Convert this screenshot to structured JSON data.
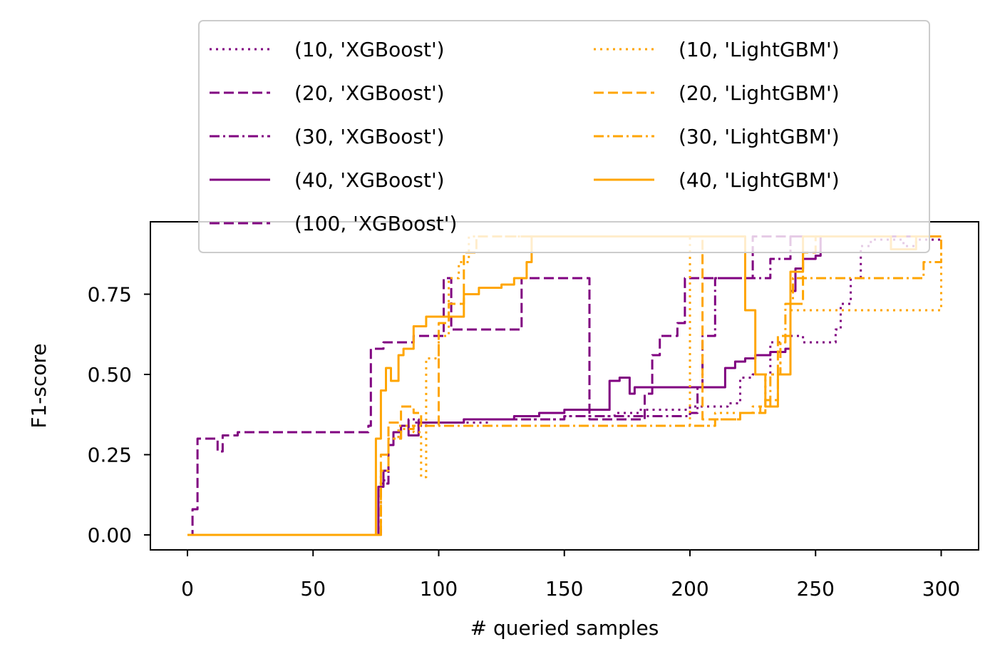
{
  "chart_data": {
    "type": "line",
    "title": "",
    "xlabel": "# queried samples",
    "ylabel": "F1-score",
    "xlim": [
      -15,
      315
    ],
    "ylim": [
      -0.05,
      0.97
    ],
    "xticks": [
      0,
      50,
      100,
      150,
      200,
      250,
      300
    ],
    "yticks": [
      0.0,
      0.25,
      0.5,
      0.75
    ],
    "xtick_labels": [
      "0",
      "50",
      "100",
      "150",
      "200",
      "250",
      "300"
    ],
    "ytick_labels": [
      "0.00",
      "0.25",
      "0.50",
      "0.75"
    ],
    "grid": false,
    "legend_position": "upper center, above plot, 2 columns",
    "series": [
      {
        "name": "(10, 'XGBoost')",
        "color": "#800080",
        "dash": "dotted",
        "points": [
          [
            0,
            0
          ],
          [
            75,
            0
          ],
          [
            77,
            0.17
          ],
          [
            80,
            0.3
          ],
          [
            84,
            0.34
          ],
          [
            90,
            0.35
          ],
          [
            100,
            0.35
          ],
          [
            120,
            0.36
          ],
          [
            150,
            0.37
          ],
          [
            170,
            0.38
          ],
          [
            175,
            0.38
          ],
          [
            180,
            0.39
          ],
          [
            200,
            0.4
          ],
          [
            215,
            0.41
          ],
          [
            220,
            0.49
          ],
          [
            225,
            0.5
          ],
          [
            232,
            0.6
          ],
          [
            240,
            0.62
          ],
          [
            245,
            0.6
          ],
          [
            255,
            0.6
          ],
          [
            258,
            0.64
          ],
          [
            260,
            0.72
          ],
          [
            264,
            0.8
          ],
          [
            268,
            0.9
          ],
          [
            272,
            0.92
          ],
          [
            280,
            0.92
          ],
          [
            285,
            0.9
          ],
          [
            290,
            0.92
          ],
          [
            300,
            0.92
          ]
        ]
      },
      {
        "name": "(20, 'XGBoost')",
        "color": "#800080",
        "dash": "dashed",
        "points": [
          [
            0,
            0
          ],
          [
            2,
            0.08
          ],
          [
            4,
            0.3
          ],
          [
            10,
            0.3
          ],
          [
            12,
            0.26
          ],
          [
            14,
            0.31
          ],
          [
            20,
            0.32
          ],
          [
            50,
            0.32
          ],
          [
            70,
            0.32
          ],
          [
            72,
            0.34
          ],
          [
            73,
            0.58
          ],
          [
            78,
            0.6
          ],
          [
            90,
            0.62
          ],
          [
            100,
            0.62
          ],
          [
            102,
            0.8
          ],
          [
            105,
            0.64
          ],
          [
            130,
            0.64
          ],
          [
            133,
            0.8
          ],
          [
            160,
            0.36
          ],
          [
            175,
            0.36
          ],
          [
            180,
            0.36
          ],
          [
            182,
            0.44
          ],
          [
            185,
            0.56
          ],
          [
            188,
            0.62
          ],
          [
            195,
            0.66
          ],
          [
            198,
            0.8
          ],
          [
            220,
            0.8
          ],
          [
            225,
            0.93
          ],
          [
            300,
            0.93
          ]
        ]
      },
      {
        "name": "(30, 'XGBoost')",
        "color": "#800080",
        "dash": "dashdot",
        "points": [
          [
            0,
            0
          ],
          [
            75,
            0
          ],
          [
            77,
            0.16
          ],
          [
            80,
            0.3
          ],
          [
            85,
            0.33
          ],
          [
            88,
            0.36
          ],
          [
            92,
            0.34
          ],
          [
            95,
            0.35
          ],
          [
            110,
            0.36
          ],
          [
            150,
            0.37
          ],
          [
            170,
            0.37
          ],
          [
            175,
            0.37
          ],
          [
            200,
            0.38
          ],
          [
            203,
            0.46
          ],
          [
            205,
            0.62
          ],
          [
            210,
            0.8
          ],
          [
            230,
            0.8
          ],
          [
            232,
            0.86
          ],
          [
            240,
            0.93
          ],
          [
            300,
            0.93
          ]
        ]
      },
      {
        "name": "(40, 'XGBoost')",
        "color": "#800080",
        "dash": "solid",
        "points": [
          [
            0,
            0
          ],
          [
            75,
            0
          ],
          [
            76,
            0.15
          ],
          [
            78,
            0.2
          ],
          [
            80,
            0.28
          ],
          [
            82,
            0.32
          ],
          [
            85,
            0.34
          ],
          [
            88,
            0.31
          ],
          [
            92,
            0.35
          ],
          [
            110,
            0.36
          ],
          [
            130,
            0.37
          ],
          [
            140,
            0.38
          ],
          [
            150,
            0.39
          ],
          [
            165,
            0.39
          ],
          [
            168,
            0.48
          ],
          [
            172,
            0.49
          ],
          [
            176,
            0.44
          ],
          [
            178,
            0.46
          ],
          [
            200,
            0.46
          ],
          [
            212,
            0.46
          ],
          [
            214,
            0.52
          ],
          [
            218,
            0.54
          ],
          [
            222,
            0.55
          ],
          [
            226,
            0.56
          ],
          [
            232,
            0.57
          ],
          [
            238,
            0.58
          ],
          [
            240,
            0.76
          ],
          [
            242,
            0.83
          ],
          [
            245,
            0.86
          ],
          [
            250,
            0.87
          ],
          [
            252,
            0.93
          ],
          [
            300,
            0.93
          ]
        ]
      },
      {
        "name": "(100, 'XGBoost')",
        "color": "#800080",
        "dash": "dashed",
        "points": []
      },
      {
        "name": "(10, 'LightGBM')",
        "color": "#FFA500",
        "dash": "dotted",
        "points": [
          [
            0,
            0
          ],
          [
            75,
            0
          ],
          [
            77,
            0.2
          ],
          [
            80,
            0.3
          ],
          [
            84,
            0.34
          ],
          [
            90,
            0.32
          ],
          [
            93,
            0.18
          ],
          [
            95,
            0.55
          ],
          [
            100,
            0.62
          ],
          [
            104,
            0.8
          ],
          [
            108,
            0.85
          ],
          [
            112,
            0.93
          ],
          [
            135,
            0.93
          ],
          [
            200,
            0.34
          ],
          [
            210,
            0.38
          ],
          [
            225,
            0.4
          ],
          [
            230,
            0.5
          ],
          [
            236,
            0.6
          ],
          [
            240,
            0.7
          ],
          [
            300,
            0.93
          ]
        ]
      },
      {
        "name": "(20, 'LightGBM')",
        "color": "#FFA500",
        "dash": "dashed",
        "points": [
          [
            0,
            0
          ],
          [
            75,
            0
          ],
          [
            77,
            0.25
          ],
          [
            80,
            0.35
          ],
          [
            85,
            0.4
          ],
          [
            90,
            0.38
          ],
          [
            93,
            0.34
          ],
          [
            100,
            0.66
          ],
          [
            104,
            0.72
          ],
          [
            110,
            0.88
          ],
          [
            115,
            0.93
          ],
          [
            200,
            0.93
          ],
          [
            205,
            0.36
          ],
          [
            220,
            0.38
          ],
          [
            230,
            0.42
          ],
          [
            235,
            0.62
          ],
          [
            240,
            0.72
          ],
          [
            245,
            0.88
          ],
          [
            250,
            0.93
          ],
          [
            300,
            0.93
          ]
        ]
      },
      {
        "name": "(30, 'LightGBM')",
        "color": "#FFA500",
        "dash": "dashdot",
        "points": [
          [
            0,
            0
          ],
          [
            75,
            0
          ],
          [
            77,
            0.2
          ],
          [
            80,
            0.3
          ],
          [
            85,
            0.33
          ],
          [
            90,
            0.34
          ],
          [
            100,
            0.34
          ],
          [
            150,
            0.34
          ],
          [
            200,
            0.34
          ],
          [
            210,
            0.36
          ],
          [
            220,
            0.38
          ],
          [
            228,
            0.4
          ],
          [
            232,
            0.5
          ],
          [
            236,
            0.6
          ],
          [
            238,
            0.72
          ],
          [
            241,
            0.8
          ],
          [
            290,
            0.8
          ],
          [
            293,
            0.85
          ],
          [
            300,
            0.92
          ]
        ]
      },
      {
        "name": "(40, 'LightGBM')",
        "color": "#FFA500",
        "dash": "solid",
        "points": [
          [
            0,
            0
          ],
          [
            74,
            0
          ],
          [
            75,
            0.3
          ],
          [
            77,
            0.45
          ],
          [
            79,
            0.52
          ],
          [
            81,
            0.48
          ],
          [
            84,
            0.56
          ],
          [
            86,
            0.58
          ],
          [
            90,
            0.65
          ],
          [
            95,
            0.68
          ],
          [
            100,
            0.68
          ],
          [
            105,
            0.68
          ],
          [
            110,
            0.75
          ],
          [
            116,
            0.77
          ],
          [
            125,
            0.78
          ],
          [
            130,
            0.8
          ],
          [
            135,
            0.85
          ],
          [
            137,
            0.93
          ],
          [
            200,
            0.93
          ],
          [
            220,
            0.93
          ],
          [
            222,
            0.7
          ],
          [
            226,
            0.5
          ],
          [
            230,
            0.4
          ],
          [
            235,
            0.5
          ],
          [
            240,
            0.82
          ],
          [
            245,
            0.93
          ],
          [
            270,
            0.93
          ],
          [
            280,
            0.89
          ],
          [
            290,
            0.93
          ],
          [
            300,
            0.93
          ]
        ]
      }
    ]
  }
}
